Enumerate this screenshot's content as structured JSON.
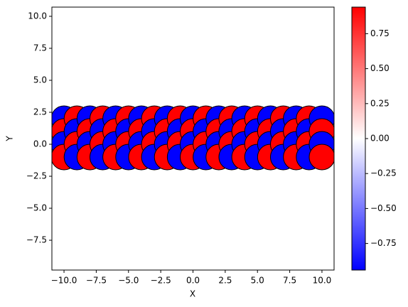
{
  "chart_data": {
    "type": "scatter",
    "xlabel": "X",
    "ylabel": "Y",
    "xlim": [
      -10.94,
      10.94
    ],
    "ylim": [
      -9.83,
      10.72
    ],
    "xticks": [
      {
        "value": -10,
        "label": "−10.0"
      },
      {
        "value": -7.5,
        "label": "−7.5"
      },
      {
        "value": -5,
        "label": "−5.0"
      },
      {
        "value": -2.5,
        "label": "−2.5"
      },
      {
        "value": 0,
        "label": "0.0"
      },
      {
        "value": 2.5,
        "label": "2.5"
      },
      {
        "value": 5,
        "label": "5.0"
      },
      {
        "value": 7.5,
        "label": "7.5"
      },
      {
        "value": 10,
        "label": "10.0"
      }
    ],
    "yticks": [
      {
        "value": -7.5,
        "label": "−7.5"
      },
      {
        "value": -5,
        "label": "−5.0"
      },
      {
        "value": -2.5,
        "label": "−2.5"
      },
      {
        "value": 0,
        "label": "0.0"
      },
      {
        "value": 2.5,
        "label": "2.5"
      },
      {
        "value": 5,
        "label": "5.0"
      },
      {
        "value": 7.5,
        "label": "7.5"
      },
      {
        "value": 10,
        "label": "10.0"
      }
    ],
    "colormap": "bwr",
    "clim": [
      -0.94,
      0.94
    ],
    "cticks": [
      {
        "value": -0.75,
        "label": "−0.75"
      },
      {
        "value": -0.5,
        "label": "−0.50"
      },
      {
        "value": -0.25,
        "label": "−0.25"
      },
      {
        "value": 0,
        "label": "0.00"
      },
      {
        "value": 0.25,
        "label": "0.25"
      },
      {
        "value": 0.5,
        "label": "0.50"
      },
      {
        "value": 0.75,
        "label": "0.75"
      }
    ],
    "x": [
      -10,
      -10,
      -10,
      -10,
      -9,
      -9,
      -9,
      -9,
      -8,
      -8,
      -8,
      -8,
      -7,
      -7,
      -7,
      -7,
      -6,
      -6,
      -6,
      -6,
      -5,
      -5,
      -5,
      -5,
      -4,
      -4,
      -4,
      -4,
      -3,
      -3,
      -3,
      -3,
      -2,
      -2,
      -2,
      -2,
      -1,
      -1,
      -1,
      -1,
      0,
      0,
      0,
      0,
      1,
      1,
      1,
      1,
      2,
      2,
      2,
      2,
      3,
      3,
      3,
      3,
      4,
      4,
      4,
      4,
      5,
      5,
      5,
      5,
      6,
      6,
      6,
      6,
      7,
      7,
      7,
      7,
      8,
      8,
      8,
      8,
      9,
      9,
      9,
      9,
      10,
      10,
      10,
      10
    ],
    "y": [
      2,
      1,
      0,
      -1,
      2,
      1,
      0,
      -1,
      2,
      1,
      0,
      -1,
      2,
      1,
      0,
      -1,
      2,
      1,
      0,
      -1,
      2,
      1,
      0,
      -1,
      2,
      1,
      0,
      -1,
      2,
      1,
      0,
      -1,
      2,
      1,
      0,
      -1,
      2,
      1,
      0,
      -1,
      2,
      1,
      0,
      -1,
      2,
      1,
      0,
      -1,
      2,
      1,
      0,
      -1,
      2,
      1,
      0,
      -1,
      2,
      1,
      0,
      -1,
      2,
      1,
      0,
      -1,
      2,
      1,
      0,
      -1,
      2,
      1,
      0,
      -1,
      2,
      1,
      0,
      -1,
      2,
      1,
      0,
      -1,
      2,
      1,
      0,
      -1
    ],
    "c": [
      -0.94,
      0.94,
      -0.94,
      0.94,
      0.94,
      -0.94,
      0.94,
      -0.94,
      -0.94,
      0.94,
      -0.94,
      0.94,
      0.94,
      -0.94,
      0.94,
      -0.94,
      -0.94,
      0.94,
      -0.94,
      0.94,
      0.94,
      -0.94,
      0.94,
      -0.94,
      -0.94,
      0.94,
      -0.94,
      0.94,
      0.94,
      -0.94,
      0.94,
      -0.94,
      -0.94,
      0.94,
      -0.94,
      0.94,
      0.94,
      -0.94,
      0.94,
      -0.94,
      -0.94,
      0.94,
      -0.94,
      0.94,
      0.94,
      -0.94,
      0.94,
      -0.94,
      -0.94,
      0.94,
      -0.94,
      0.94,
      0.94,
      -0.94,
      0.94,
      -0.94,
      -0.94,
      0.94,
      -0.94,
      0.94,
      0.94,
      -0.94,
      0.94,
      -0.94,
      -0.94,
      0.94,
      -0.94,
      0.94,
      0.94,
      -0.94,
      0.94,
      -0.94,
      -0.94,
      0.94,
      -0.94,
      0.94,
      0.94,
      -0.94,
      0.94,
      -0.94,
      -0.94,
      0.94,
      -0.94,
      0.94
    ]
  }
}
